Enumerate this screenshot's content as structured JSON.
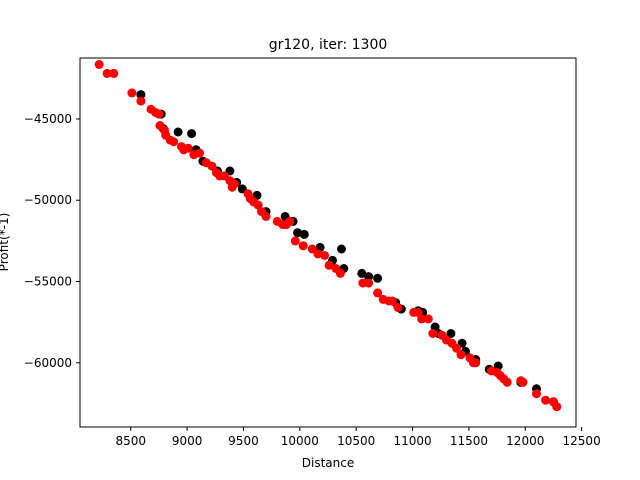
{
  "chart_data": {
    "type": "scatter",
    "title": "gr120, iter: 1300",
    "xlabel": "Distance",
    "ylabel": "Profit(*-1)",
    "xlim": [
      8050,
      12450
    ],
    "ylim": [
      -63950,
      -41250
    ],
    "xticks": [
      8500,
      9000,
      9500,
      10000,
      10500,
      11000,
      11500,
      12000,
      12500
    ],
    "yticks": [
      -60000,
      -55000,
      -50000,
      -45000
    ],
    "xtick_labels": [
      "8500",
      "9000",
      "9500",
      "10000",
      "10500",
      "11000",
      "11500",
      "12000",
      "12500"
    ],
    "ytick_labels": [
      "−60000",
      "−55000",
      "−50000",
      "−45000"
    ],
    "grid": false,
    "series": [
      {
        "color": "#000000",
        "points": [
          [
            8590,
            -43500
          ],
          [
            8770,
            -44700
          ],
          [
            8790,
            -45600
          ],
          [
            8920,
            -45800
          ],
          [
            9040,
            -45900
          ],
          [
            9080,
            -46900
          ],
          [
            9140,
            -47600
          ],
          [
            9270,
            -48200
          ],
          [
            9380,
            -48200
          ],
          [
            9440,
            -48900
          ],
          [
            9490,
            -49300
          ],
          [
            9620,
            -49700
          ],
          [
            9700,
            -50700
          ],
          [
            9870,
            -51000
          ],
          [
            9940,
            -51300
          ],
          [
            9980,
            -52000
          ],
          [
            10040,
            -52100
          ],
          [
            10180,
            -52900
          ],
          [
            10290,
            -53700
          ],
          [
            10370,
            -53000
          ],
          [
            10390,
            -54200
          ],
          [
            10550,
            -54500
          ],
          [
            10610,
            -54700
          ],
          [
            10690,
            -54800
          ],
          [
            10850,
            -56300
          ],
          [
            10900,
            -56700
          ],
          [
            11050,
            -56800
          ],
          [
            11090,
            -56900
          ],
          [
            11200,
            -57800
          ],
          [
            11230,
            -58200
          ],
          [
            11340,
            -58200
          ],
          [
            11440,
            -58800
          ],
          [
            11470,
            -59300
          ],
          [
            11560,
            -59800
          ],
          [
            11680,
            -60400
          ],
          [
            11760,
            -60200
          ],
          [
            11960,
            -61200
          ],
          [
            12100,
            -61600
          ],
          [
            12250,
            -62400
          ]
        ]
      },
      {
        "color": "#ff0000",
        "points": [
          [
            8220,
            -41650
          ],
          [
            8290,
            -42200
          ],
          [
            8350,
            -42200
          ],
          [
            8510,
            -43400
          ],
          [
            8590,
            -43900
          ],
          [
            8680,
            -44400
          ],
          [
            8720,
            -44600
          ],
          [
            8750,
            -44700
          ],
          [
            8760,
            -45400
          ],
          [
            8800,
            -45700
          ],
          [
            8810,
            -46000
          ],
          [
            8850,
            -46300
          ],
          [
            8880,
            -46400
          ],
          [
            8950,
            -46700
          ],
          [
            8970,
            -46900
          ],
          [
            9010,
            -46800
          ],
          [
            9060,
            -47200
          ],
          [
            9110,
            -47100
          ],
          [
            9170,
            -47700
          ],
          [
            9220,
            -47900
          ],
          [
            9260,
            -48300
          ],
          [
            9290,
            -48500
          ],
          [
            9330,
            -48500
          ],
          [
            9380,
            -48800
          ],
          [
            9400,
            -49200
          ],
          [
            9420,
            -49000
          ],
          [
            9540,
            -49600
          ],
          [
            9560,
            -49900
          ],
          [
            9590,
            -50100
          ],
          [
            9630,
            -50300
          ],
          [
            9660,
            -50700
          ],
          [
            9700,
            -51000
          ],
          [
            9800,
            -51300
          ],
          [
            9850,
            -51500
          ],
          [
            9880,
            -51500
          ],
          [
            9910,
            -51300
          ],
          [
            9960,
            -52500
          ],
          [
            10030,
            -52800
          ],
          [
            10110,
            -53000
          ],
          [
            10160,
            -53300
          ],
          [
            10220,
            -53400
          ],
          [
            10260,
            -54000
          ],
          [
            10320,
            -54200
          ],
          [
            10360,
            -54500
          ],
          [
            10560,
            -55100
          ],
          [
            10610,
            -55100
          ],
          [
            10690,
            -55700
          ],
          [
            10740,
            -56100
          ],
          [
            10790,
            -56200
          ],
          [
            10820,
            -56200
          ],
          [
            10870,
            -56600
          ],
          [
            11010,
            -56900
          ],
          [
            11050,
            -56900
          ],
          [
            11080,
            -57300
          ],
          [
            11140,
            -57300
          ],
          [
            11180,
            -58200
          ],
          [
            11260,
            -58300
          ],
          [
            11300,
            -58600
          ],
          [
            11350,
            -58800
          ],
          [
            11390,
            -59100
          ],
          [
            11430,
            -59500
          ],
          [
            11510,
            -59700
          ],
          [
            11540,
            -60000
          ],
          [
            11560,
            -60000
          ],
          [
            11700,
            -60500
          ],
          [
            11750,
            -60600
          ],
          [
            11780,
            -60800
          ],
          [
            11810,
            -61000
          ],
          [
            11840,
            -61200
          ],
          [
            11960,
            -61100
          ],
          [
            11980,
            -61200
          ],
          [
            12100,
            -61900
          ],
          [
            12180,
            -62300
          ],
          [
            12250,
            -62400
          ],
          [
            12280,
            -62700
          ]
        ]
      }
    ]
  }
}
